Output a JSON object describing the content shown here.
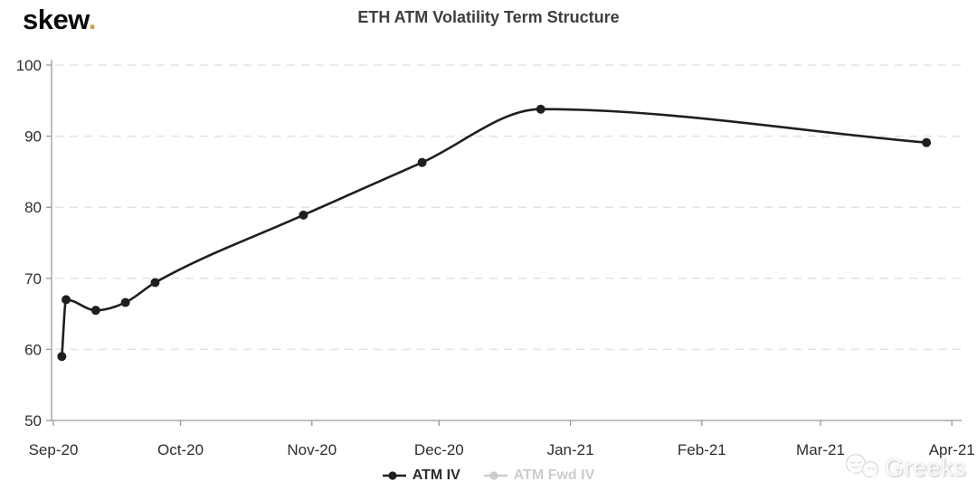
{
  "header": {
    "logo": {
      "text": "skew",
      "dot": ".",
      "dot_color": "#c9a03c"
    },
    "title": "ETH ATM Volatility Term Structure"
  },
  "chart_data": {
    "type": "line",
    "title": "ETH ATM Volatility Term Structure",
    "xlabel": "",
    "ylabel": "",
    "ylim": [
      50,
      100
    ],
    "y_tick_labels": [
      "50",
      "60",
      "70",
      "80",
      "90",
      "100"
    ],
    "y_tick_values": [
      50,
      60,
      70,
      80,
      90,
      100
    ],
    "x_tick_labels": [
      "Sep-20",
      "Oct-20",
      "Nov-20",
      "Dec-20",
      "Jan-21",
      "Feb-21",
      "Mar-21",
      "Apr-21"
    ],
    "x_tick_days": [
      0,
      30,
      61,
      91,
      122,
      153,
      181,
      212
    ],
    "x_epoch": "2020-09-01",
    "grid": "horizontal-dashed",
    "legend_position": "bottom-center",
    "series": [
      {
        "name": "ATM IV",
        "color": "#1f1f1f",
        "active": true,
        "marker": "filled-circle",
        "points": [
          {
            "date": "2020-09-03",
            "day": 2,
            "value": 59.0
          },
          {
            "date": "2020-09-04",
            "day": 3,
            "value": 67.0
          },
          {
            "date": "2020-09-11",
            "day": 10,
            "value": 65.5
          },
          {
            "date": "2020-09-18",
            "day": 17,
            "value": 66.6
          },
          {
            "date": "2020-09-25",
            "day": 24,
            "value": 69.4
          },
          {
            "date": "2020-10-30",
            "day": 59,
            "value": 78.9
          },
          {
            "date": "2020-11-27",
            "day": 87,
            "value": 86.3
          },
          {
            "date": "2020-12-25",
            "day": 115,
            "value": 93.8
          },
          {
            "date": "2021-03-26",
            "day": 206,
            "value": 89.1
          }
        ]
      },
      {
        "name": "ATM Fwd IV",
        "color": "#cccccc",
        "active": false,
        "marker": "filled-circle",
        "points": []
      }
    ]
  },
  "legend": {
    "items": [
      {
        "label": "ATM IV",
        "color": "#1f1f1f",
        "active": true
      },
      {
        "label": "ATM Fwd IV",
        "color": "#cccccc",
        "active": false
      }
    ]
  },
  "watermark": {
    "text": "Greeks",
    "icon": "chat-bubbles-icon"
  }
}
